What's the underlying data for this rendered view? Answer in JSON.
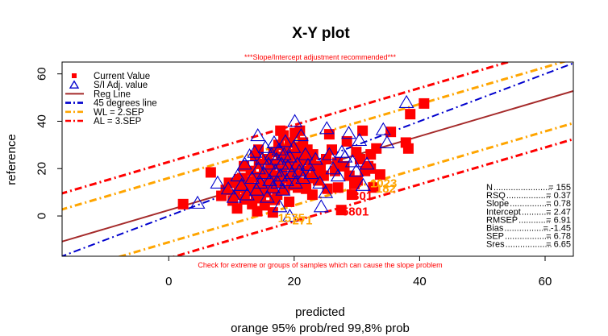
{
  "chart_data": {
    "type": "scatter",
    "title": "X-Y plot",
    "subtitle": "***Slope/Intercept adjustment recommended***",
    "bottom_note": "Check for extreme or groups of samples which can cause the slope problem",
    "xlabel": "predicted",
    "xlabel2": "orange 95% prob/red 99,8% prob",
    "ylabel": "reference",
    "xlim": [
      -17,
      64.5
    ],
    "ylim": [
      -17,
      65
    ],
    "x_ticks": [
      0,
      20,
      40,
      60
    ],
    "y_ticks": [
      0,
      20,
      40,
      60
    ],
    "grid": false,
    "legend_position": "top-left",
    "colors": {
      "current": "#ff0000",
      "si_adj": "#0000cd",
      "reg_line": "#a52a2a",
      "line45": "#0000cd",
      "wl": "#ffa500",
      "al": "#ff0000",
      "label_orange": "#ffa500",
      "label_red": "#ff0000",
      "subtitle": "#ff0000"
    },
    "legend": [
      {
        "label": "Current Value",
        "marker": "square",
        "color": "#ff0000"
      },
      {
        "label": "S/I Adj. value",
        "marker": "triangle",
        "color": "#0000cd"
      },
      {
        "label": "Reg Line",
        "line": "solid",
        "color": "#a52a2a"
      },
      {
        "label": "45 degrees line",
        "line": "dashdot",
        "color": "#0000cd"
      },
      {
        "label": "WL = 2.SEP",
        "line": "dashdot",
        "color": "#ffa500"
      },
      {
        "label": "AL = 3.SEP",
        "line": "dashdot",
        "color": "#ff0000"
      }
    ],
    "lines": {
      "reg": {
        "slope": 0.78,
        "intercept": 2.47
      },
      "diag": {
        "slope": 1,
        "intercept": 0
      },
      "sep": 6.78
    },
    "stats": [
      {
        "label": "N",
        "value": "155"
      },
      {
        "label": "RSQ",
        "value": "0.37"
      },
      {
        "label": "Slope",
        "value": "0.78"
      },
      {
        "label": "Intercept",
        "value": "2.47"
      },
      {
        "label": "RMSEP",
        "value": "6.91"
      },
      {
        "label": "Bias",
        "value": "-1.45"
      },
      {
        "label": "SEP",
        "value": "6.78"
      },
      {
        "label": "Sres",
        "value": "6.65"
      }
    ],
    "outlier_labels": [
      {
        "text": "5801",
        "x": 27.6,
        "y": 1.8,
        "color": "#ff0000"
      },
      {
        "text": "301",
        "x": 29.3,
        "y": 8.5,
        "color": "#ff0000"
      },
      {
        "text": "182",
        "x": 33.0,
        "y": 11.5,
        "color": "#ffa500"
      },
      {
        "text": "1023",
        "x": 32.1,
        "y": 13.8,
        "color": "#ffa500"
      },
      {
        "text": "1575",
        "x": 17.4,
        "y": -0.8,
        "color": "#ffa500"
      },
      {
        "text": "271",
        "x": 19.7,
        "y": -1.8,
        "color": "#ffa500"
      }
    ],
    "current_points": [
      [
        2.3,
        5
      ],
      [
        6.7,
        18.4
      ],
      [
        8.4,
        8.5
      ],
      [
        9.1,
        11
      ],
      [
        9.6,
        14
      ],
      [
        10.2,
        6.5
      ],
      [
        10.6,
        9
      ],
      [
        10.9,
        3.2
      ],
      [
        11.2,
        12
      ],
      [
        11.7,
        16
      ],
      [
        12.1,
        7
      ],
      [
        12.4,
        10.5
      ],
      [
        12.8,
        14.5
      ],
      [
        13.1,
        19
      ],
      [
        13.3,
        5
      ],
      [
        13.6,
        12
      ],
      [
        13.9,
        9
      ],
      [
        14.2,
        16.5
      ],
      [
        14.4,
        22
      ],
      [
        14.7,
        7.5
      ],
      [
        15.0,
        13
      ],
      [
        15.2,
        18
      ],
      [
        15.5,
        10
      ],
      [
        15.7,
        24
      ],
      [
        16.0,
        15
      ],
      [
        16.2,
        20
      ],
      [
        16.4,
        12
      ],
      [
        16.7,
        27
      ],
      [
        16.9,
        17
      ],
      [
        17.1,
        22
      ],
      [
        17.3,
        9
      ],
      [
        17.5,
        30
      ],
      [
        17.7,
        14
      ],
      [
        17.9,
        25
      ],
      [
        18.1,
        19
      ],
      [
        18.3,
        34
      ],
      [
        18.5,
        11
      ],
      [
        18.7,
        28
      ],
      [
        18.9,
        16
      ],
      [
        19.1,
        23
      ],
      [
        19.3,
        31
      ],
      [
        19.5,
        13
      ],
      [
        19.7,
        26
      ],
      [
        19.9,
        20
      ],
      [
        20.1,
        35
      ],
      [
        20.3,
        17
      ],
      [
        20.5,
        29
      ],
      [
        20.8,
        22
      ],
      [
        21.0,
        26
      ],
      [
        21.2,
        14
      ],
      [
        21.4,
        31
      ],
      [
        21.6,
        19
      ],
      [
        21.8,
        24
      ],
      [
        22.1,
        28
      ],
      [
        22.4,
        16
      ],
      [
        22.7,
        22
      ],
      [
        23.0,
        26
      ],
      [
        23.4,
        19
      ],
      [
        23.8,
        15
      ],
      [
        24.2,
        21
      ],
      [
        24.7,
        17
      ],
      [
        25.1,
        24
      ],
      [
        25.6,
        34.5
      ],
      [
        26.0,
        28
      ],
      [
        26.5,
        19
      ],
      [
        27.0,
        12
      ],
      [
        27.5,
        2.5
      ],
      [
        28.0,
        21
      ],
      [
        28.4,
        31.5
      ],
      [
        28.8,
        17
      ],
      [
        29.2,
        9
      ],
      [
        29.6,
        13.5
      ],
      [
        30.1,
        15
      ],
      [
        30.5,
        24
      ],
      [
        30.9,
        36
      ],
      [
        31.3,
        19
      ],
      [
        31.8,
        21
      ],
      [
        32.2,
        26
      ],
      [
        32.6,
        12
      ],
      [
        33.1,
        28.5
      ],
      [
        33.7,
        17.5
      ],
      [
        35.4,
        35.5
      ],
      [
        37.8,
        31
      ],
      [
        38.2,
        28.5
      ],
      [
        38.5,
        43
      ],
      [
        40.7,
        47.5
      ],
      [
        13.8,
        25.5
      ],
      [
        15.3,
        4.5
      ],
      [
        16.6,
        1.5
      ],
      [
        22.9,
        9
      ],
      [
        12.0,
        21
      ],
      [
        19.2,
        6
      ],
      [
        11.2,
        15.5
      ],
      [
        14.1,
        2
      ],
      [
        20.6,
        12
      ],
      [
        16.9,
        6.8
      ],
      [
        18.8,
        21.5
      ],
      [
        14.3,
        28
      ],
      [
        21.9,
        11.5
      ],
      [
        25.3,
        11.5
      ],
      [
        17.8,
        36
      ],
      [
        20.9,
        36
      ],
      [
        26.9,
        22.5
      ],
      [
        29.9,
        27
      ],
      [
        32.2,
        20
      ]
    ],
    "si_points": [
      [
        4.6,
        5.5
      ],
      [
        7.8,
        14
      ],
      [
        9.5,
        11.5
      ],
      [
        10.4,
        8
      ],
      [
        11.0,
        17
      ],
      [
        11.6,
        13
      ],
      [
        12.1,
        22
      ],
      [
        12.5,
        9
      ],
      [
        12.9,
        25.5
      ],
      [
        13.3,
        16
      ],
      [
        13.7,
        27
      ],
      [
        14.0,
        11
      ],
      [
        14.3,
        20
      ],
      [
        14.6,
        14
      ],
      [
        14.9,
        24
      ],
      [
        15.2,
        18
      ],
      [
        15.4,
        29
      ],
      [
        15.7,
        8
      ],
      [
        15.9,
        22
      ],
      [
        16.1,
        15
      ],
      [
        16.4,
        26
      ],
      [
        16.6,
        12
      ],
      [
        16.8,
        31
      ],
      [
        17.0,
        19
      ],
      [
        17.2,
        24
      ],
      [
        17.4,
        14
      ],
      [
        17.6,
        28
      ],
      [
        17.8,
        17
      ],
      [
        18.0,
        22
      ],
      [
        18.2,
        11
      ],
      [
        18.4,
        26
      ],
      [
        18.6,
        31.5
      ],
      [
        18.8,
        15
      ],
      [
        19.0,
        21
      ],
      [
        19.3,
        25
      ],
      [
        19.6,
        18
      ],
      [
        19.9,
        29
      ],
      [
        20.2,
        14
      ],
      [
        20.5,
        22
      ],
      [
        20.8,
        19
      ],
      [
        21.1,
        34
      ],
      [
        21.4,
        16
      ],
      [
        21.8,
        26
      ],
      [
        22.2,
        21.5
      ],
      [
        22.7,
        18
      ],
      [
        23.4,
        24
      ],
      [
        24.1,
        14
      ],
      [
        25.0,
        10
      ],
      [
        25.6,
        26
      ],
      [
        26.2,
        20
      ],
      [
        27.0,
        17
      ],
      [
        27.6,
        27
      ],
      [
        28.1,
        25
      ],
      [
        28.7,
        35
      ],
      [
        29.3,
        23
      ],
      [
        29.9,
        19
      ],
      [
        30.4,
        32
      ],
      [
        31.0,
        13
      ],
      [
        31.6,
        22
      ],
      [
        34.2,
        36.5
      ],
      [
        34.8,
        31
      ],
      [
        37.9,
        48
      ],
      [
        24.3,
        4
      ],
      [
        19.3,
        0
      ],
      [
        17.7,
        4
      ],
      [
        14.2,
        34
      ],
      [
        20.1,
        40
      ],
      [
        25.2,
        37
      ]
    ]
  }
}
